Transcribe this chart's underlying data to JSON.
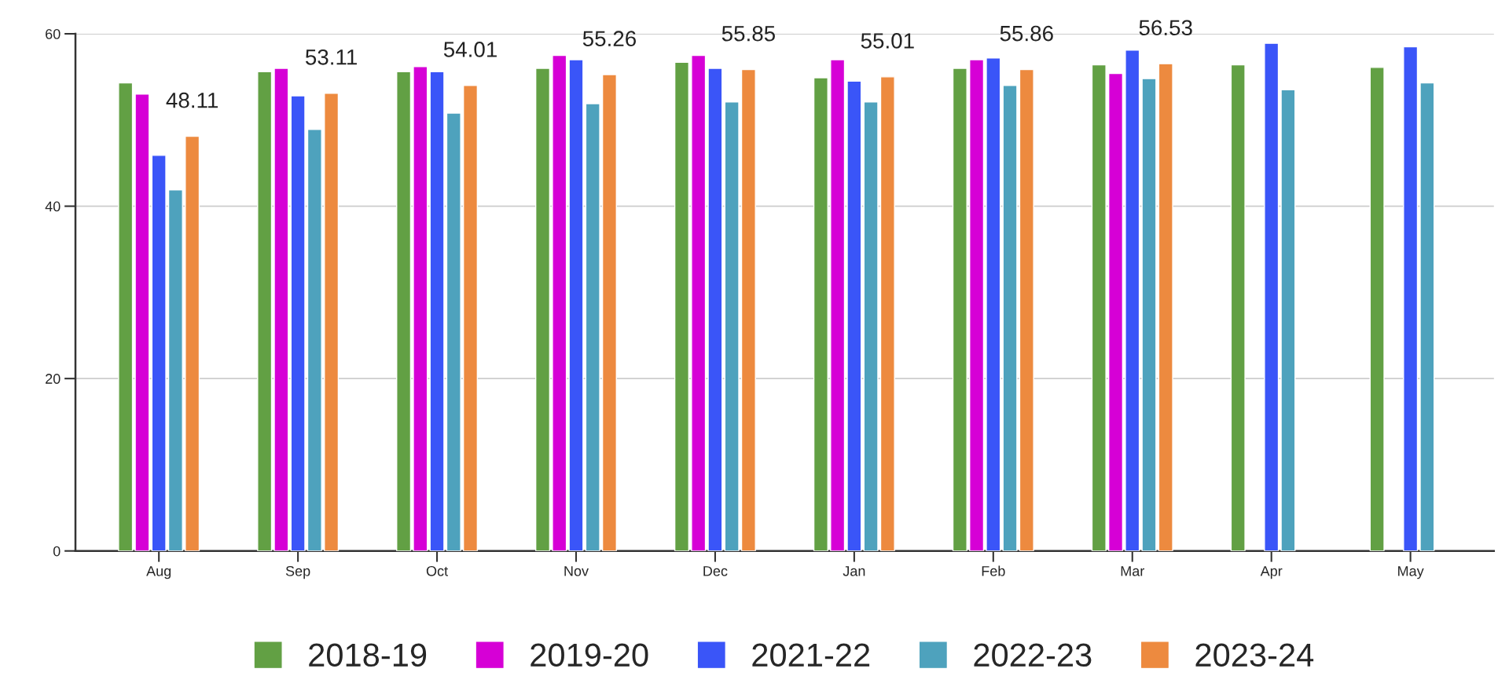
{
  "chart_data": {
    "type": "bar",
    "categories": [
      "Aug",
      "Sep",
      "Oct",
      "Nov",
      "Dec",
      "Jan",
      "Feb",
      "Mar",
      "Apr",
      "May"
    ],
    "series": [
      {
        "name": "2018-19",
        "color": "#62a044",
        "values": [
          54.3,
          55.6,
          55.6,
          56.0,
          56.7,
          54.9,
          56.0,
          56.4,
          56.4,
          56.1
        ]
      },
      {
        "name": "2019-20",
        "color": "#d600d6",
        "values": [
          53.0,
          56.0,
          56.2,
          57.5,
          57.5,
          57.0,
          57.0,
          55.4,
          null,
          null
        ]
      },
      {
        "name": "2021-22",
        "color": "#3a55f8",
        "values": [
          45.9,
          52.8,
          55.6,
          57.0,
          56.0,
          54.5,
          57.2,
          58.1,
          58.9,
          58.5
        ]
      },
      {
        "name": "2022-23",
        "color": "#4ea2bd",
        "values": [
          41.9,
          48.9,
          50.8,
          51.9,
          52.1,
          52.1,
          54.0,
          54.8,
          53.5,
          54.3
        ]
      },
      {
        "name": "2023-24",
        "color": "#ed8a3f",
        "values": [
          48.11,
          53.11,
          54.01,
          55.26,
          55.85,
          55.01,
          55.86,
          56.53,
          null,
          null
        ],
        "value_labels": [
          "48.11",
          "53.11",
          "54.01",
          "55.26",
          "55.85",
          "55.01",
          "55.86",
          "56.53",
          null,
          null
        ]
      }
    ],
    "ylim": [
      0,
      60
    ],
    "yticks": [
      0,
      20,
      40,
      60
    ],
    "grid": "y",
    "legend": "bottom"
  }
}
